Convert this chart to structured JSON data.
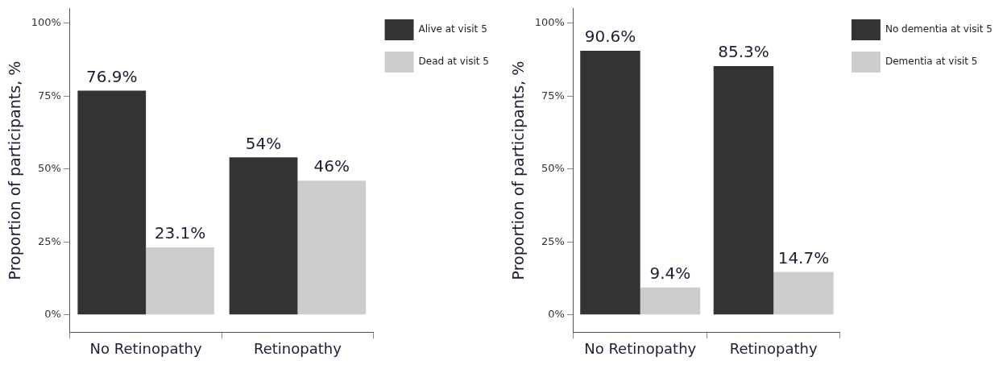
{
  "chart_data": [
    {
      "type": "bar",
      "ylabel": "Proportion of participants, %",
      "categories": [
        "No Retinopathy",
        "Retinopathy"
      ],
      "series": [
        {
          "name": "Alive at visit 5",
          "color": "#333333",
          "values": [
            76.9,
            54
          ],
          "value_labels": [
            "76.9%",
            "54%"
          ]
        },
        {
          "name": "Dead at visit 5",
          "color": "#cccccc",
          "values": [
            23.1,
            46
          ],
          "value_labels": [
            "23.1%",
            "46%"
          ]
        }
      ],
      "ylim": [
        -6,
        105
      ],
      "yticks": [
        {
          "value": 0,
          "label": "0%"
        },
        {
          "value": 25,
          "label": "25%"
        },
        {
          "value": 50,
          "label": "50%"
        },
        {
          "value": 75,
          "label": "75%"
        },
        {
          "value": 100,
          "label": "100%"
        }
      ],
      "grid": false,
      "legend": "top right"
    },
    {
      "type": "bar",
      "ylabel": "Proportion of participants, %",
      "categories": [
        "No Retinopathy",
        "Retinopathy"
      ],
      "series": [
        {
          "name": "No dementia at visit 5",
          "color": "#333333",
          "values": [
            90.6,
            85.3
          ],
          "value_labels": [
            "90.6%",
            "85.3%"
          ]
        },
        {
          "name": "Dementia at visit 5",
          "color": "#cccccc",
          "values": [
            9.4,
            14.7
          ],
          "value_labels": [
            "9.4%",
            "14.7%"
          ]
        }
      ],
      "ylim": [
        -6,
        105
      ],
      "yticks": [
        {
          "value": 0,
          "label": "0%"
        },
        {
          "value": 25,
          "label": "25%"
        },
        {
          "value": 50,
          "label": "50%"
        },
        {
          "value": 75,
          "label": "75%"
        },
        {
          "value": 100,
          "label": "100%"
        }
      ],
      "grid": false,
      "legend": "top right"
    }
  ]
}
